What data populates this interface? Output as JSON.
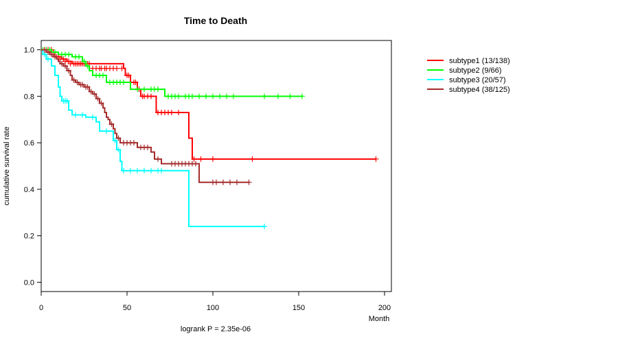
{
  "chart_data": {
    "type": "line",
    "title": "Time to Death",
    "xlabel": "Month",
    "ylabel": "cumulative survival rate",
    "annotation": "logrank P = 2.35e-06",
    "xlim": [
      0,
      204
    ],
    "ylim": [
      -0.04,
      1.04
    ],
    "x_ticks": [
      0,
      50,
      100,
      150,
      200
    ],
    "y_ticks": [
      0.0,
      0.2,
      0.4,
      0.6,
      0.8,
      1.0
    ],
    "legend_position": "right",
    "grid": false,
    "series": [
      {
        "name": "subtype1 (13/138)",
        "color": "#ff0000",
        "steps": [
          [
            0,
            1.0
          ],
          [
            5,
            0.99
          ],
          [
            8,
            0.97
          ],
          [
            12,
            0.96
          ],
          [
            15,
            0.95
          ],
          [
            18,
            0.94
          ],
          [
            48,
            0.92
          ],
          [
            49,
            0.89
          ],
          [
            52,
            0.86
          ],
          [
            56,
            0.83
          ],
          [
            58,
            0.8
          ],
          [
            67,
            0.73
          ],
          [
            86,
            0.62
          ],
          [
            88,
            0.53
          ],
          [
            195,
            0.53
          ]
        ],
        "censor": [
          [
            2,
            1.0
          ],
          [
            4,
            1.0
          ],
          [
            6,
            1.0
          ],
          [
            7,
            0.99
          ],
          [
            9,
            0.97
          ],
          [
            10,
            0.97
          ],
          [
            11,
            0.96
          ],
          [
            13,
            0.96
          ],
          [
            14,
            0.95
          ],
          [
            16,
            0.95
          ],
          [
            17,
            0.94
          ],
          [
            19,
            0.94
          ],
          [
            20,
            0.94
          ],
          [
            21,
            0.94
          ],
          [
            22,
            0.94
          ],
          [
            23,
            0.94
          ],
          [
            24,
            0.94
          ],
          [
            25,
            0.94
          ],
          [
            26,
            0.94
          ],
          [
            27,
            0.94
          ],
          [
            28,
            0.94
          ],
          [
            30,
            0.92
          ],
          [
            32,
            0.92
          ],
          [
            34,
            0.92
          ],
          [
            35,
            0.92
          ],
          [
            37,
            0.92
          ],
          [
            38,
            0.92
          ],
          [
            40,
            0.92
          ],
          [
            42,
            0.92
          ],
          [
            44,
            0.92
          ],
          [
            47,
            0.92
          ],
          [
            50,
            0.89
          ],
          [
            51,
            0.89
          ],
          [
            54,
            0.86
          ],
          [
            55,
            0.86
          ],
          [
            57,
            0.83
          ],
          [
            59,
            0.8
          ],
          [
            60,
            0.8
          ],
          [
            62,
            0.8
          ],
          [
            64,
            0.8
          ],
          [
            68,
            0.73
          ],
          [
            70,
            0.73
          ],
          [
            72,
            0.73
          ],
          [
            74,
            0.73
          ],
          [
            76,
            0.73
          ],
          [
            80,
            0.73
          ],
          [
            89,
            0.53
          ],
          [
            93,
            0.53
          ],
          [
            100,
            0.53
          ],
          [
            123,
            0.53
          ],
          [
            195,
            0.53
          ]
        ]
      },
      {
        "name": "subtype2 (9/66)",
        "color": "#00ff00",
        "steps": [
          [
            0,
            1.0
          ],
          [
            6,
            0.99
          ],
          [
            10,
            0.98
          ],
          [
            18,
            0.97
          ],
          [
            24,
            0.95
          ],
          [
            26,
            0.93
          ],
          [
            28,
            0.91
          ],
          [
            30,
            0.89
          ],
          [
            38,
            0.86
          ],
          [
            52,
            0.83
          ],
          [
            72,
            0.8
          ],
          [
            152,
            0.8
          ]
        ],
        "censor": [
          [
            1,
            1.0
          ],
          [
            3,
            1.0
          ],
          [
            5,
            1.0
          ],
          [
            8,
            0.99
          ],
          [
            12,
            0.98
          ],
          [
            14,
            0.98
          ],
          [
            16,
            0.98
          ],
          [
            20,
            0.97
          ],
          [
            22,
            0.97
          ],
          [
            25,
            0.95
          ],
          [
            27,
            0.93
          ],
          [
            32,
            0.89
          ],
          [
            34,
            0.89
          ],
          [
            36,
            0.89
          ],
          [
            40,
            0.86
          ],
          [
            42,
            0.86
          ],
          [
            44,
            0.86
          ],
          [
            46,
            0.86
          ],
          [
            48,
            0.86
          ],
          [
            56,
            0.83
          ],
          [
            60,
            0.83
          ],
          [
            64,
            0.83
          ],
          [
            66,
            0.83
          ],
          [
            68,
            0.83
          ],
          [
            74,
            0.8
          ],
          [
            76,
            0.8
          ],
          [
            78,
            0.8
          ],
          [
            80,
            0.8
          ],
          [
            84,
            0.8
          ],
          [
            86,
            0.8
          ],
          [
            88,
            0.8
          ],
          [
            92,
            0.8
          ],
          [
            96,
            0.8
          ],
          [
            100,
            0.8
          ],
          [
            104,
            0.8
          ],
          [
            108,
            0.8
          ],
          [
            112,
            0.8
          ],
          [
            130,
            0.8
          ],
          [
            138,
            0.8
          ],
          [
            145,
            0.8
          ],
          [
            152,
            0.8
          ]
        ]
      },
      {
        "name": "subtype3 (20/57)",
        "color": "#00ffff",
        "steps": [
          [
            0,
            1.0
          ],
          [
            1,
            0.98
          ],
          [
            3,
            0.96
          ],
          [
            6,
            0.93
          ],
          [
            8,
            0.89
          ],
          [
            10,
            0.84
          ],
          [
            11,
            0.8
          ],
          [
            12,
            0.78
          ],
          [
            16,
            0.74
          ],
          [
            18,
            0.72
          ],
          [
            26,
            0.71
          ],
          [
            32,
            0.69
          ],
          [
            34,
            0.65
          ],
          [
            42,
            0.61
          ],
          [
            44,
            0.57
          ],
          [
            46,
            0.52
          ],
          [
            47,
            0.48
          ],
          [
            86,
            0.24
          ],
          [
            130,
            0.24
          ]
        ],
        "censor": [
          [
            2,
            0.98
          ],
          [
            4,
            0.96
          ],
          [
            13,
            0.78
          ],
          [
            14,
            0.78
          ],
          [
            15,
            0.78
          ],
          [
            20,
            0.72
          ],
          [
            24,
            0.72
          ],
          [
            30,
            0.71
          ],
          [
            38,
            0.65
          ],
          [
            43,
            0.61
          ],
          [
            45,
            0.57
          ],
          [
            48,
            0.48
          ],
          [
            52,
            0.48
          ],
          [
            56,
            0.48
          ],
          [
            60,
            0.48
          ],
          [
            64,
            0.48
          ],
          [
            68,
            0.48
          ],
          [
            70,
            0.48
          ],
          [
            130,
            0.24
          ]
        ]
      },
      {
        "name": "subtype4 (38/125)",
        "color": "#a52a2a",
        "steps": [
          [
            0,
            1.0
          ],
          [
            3,
            0.99
          ],
          [
            5,
            0.98
          ],
          [
            7,
            0.97
          ],
          [
            9,
            0.96
          ],
          [
            10,
            0.95
          ],
          [
            11,
            0.94
          ],
          [
            13,
            0.93
          ],
          [
            15,
            0.91
          ],
          [
            17,
            0.89
          ],
          [
            18,
            0.87
          ],
          [
            20,
            0.86
          ],
          [
            22,
            0.85
          ],
          [
            25,
            0.84
          ],
          [
            28,
            0.82
          ],
          [
            30,
            0.81
          ],
          [
            32,
            0.79
          ],
          [
            34,
            0.77
          ],
          [
            36,
            0.75
          ],
          [
            37,
            0.73
          ],
          [
            38,
            0.71
          ],
          [
            39,
            0.7
          ],
          [
            40,
            0.68
          ],
          [
            42,
            0.66
          ],
          [
            43,
            0.64
          ],
          [
            44,
            0.62
          ],
          [
            46,
            0.6
          ],
          [
            56,
            0.58
          ],
          [
            64,
            0.56
          ],
          [
            66,
            0.53
          ],
          [
            70,
            0.51
          ],
          [
            92,
            0.43
          ],
          [
            121,
            0.43
          ]
        ],
        "censor": [
          [
            2,
            1.0
          ],
          [
            4,
            0.99
          ],
          [
            6,
            0.98
          ],
          [
            8,
            0.97
          ],
          [
            12,
            0.94
          ],
          [
            14,
            0.93
          ],
          [
            16,
            0.91
          ],
          [
            19,
            0.87
          ],
          [
            21,
            0.86
          ],
          [
            23,
            0.85
          ],
          [
            24,
            0.85
          ],
          [
            26,
            0.84
          ],
          [
            27,
            0.84
          ],
          [
            29,
            0.82
          ],
          [
            31,
            0.81
          ],
          [
            33,
            0.79
          ],
          [
            35,
            0.77
          ],
          [
            41,
            0.68
          ],
          [
            45,
            0.62
          ],
          [
            48,
            0.6
          ],
          [
            50,
            0.6
          ],
          [
            52,
            0.6
          ],
          [
            54,
            0.6
          ],
          [
            58,
            0.58
          ],
          [
            60,
            0.58
          ],
          [
            62,
            0.58
          ],
          [
            68,
            0.53
          ],
          [
            76,
            0.51
          ],
          [
            78,
            0.51
          ],
          [
            80,
            0.51
          ],
          [
            82,
            0.51
          ],
          [
            84,
            0.51
          ],
          [
            86,
            0.51
          ],
          [
            88,
            0.51
          ],
          [
            90,
            0.51
          ],
          [
            100,
            0.43
          ],
          [
            102,
            0.43
          ],
          [
            106,
            0.43
          ],
          [
            110,
            0.43
          ],
          [
            114,
            0.43
          ],
          [
            121,
            0.43
          ]
        ]
      }
    ]
  }
}
